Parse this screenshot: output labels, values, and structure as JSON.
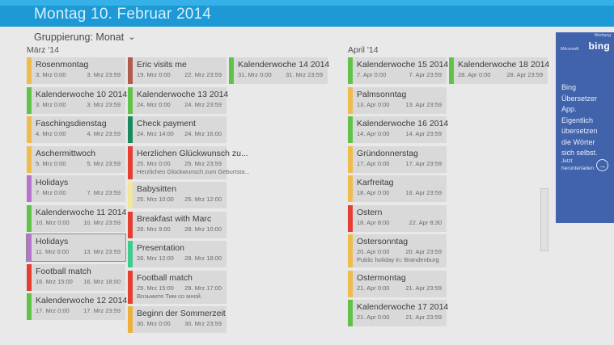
{
  "titlebar": {
    "title": "Montag 10. Februar 2014"
  },
  "toolbar": {
    "grouping_label": "Gruppierung: Monat",
    "chevron": "⌄"
  },
  "colors": {
    "amber": "#efbb4d",
    "gold": "#edb03c",
    "paleyellow": "#f2e79c",
    "green": "#60c246",
    "jade": "#168a5e",
    "mint": "#3ecb90",
    "red": "#e63e30",
    "brick": "#b05a50",
    "purple": "#b475cb"
  },
  "groups": [
    {
      "label": "März '14",
      "columns": [
        [
          {
            "title": "Rosenmontag",
            "start": "3. Mrz 0:00",
            "end": "3. Mrz 23:59",
            "color": "amber"
          },
          {
            "title": "Kalenderwoche 10 2014",
            "start": "3. Mrz 0:00",
            "end": "3. Mrz 23:59",
            "color": "green"
          },
          {
            "title": "Faschingsdienstag",
            "start": "4. Mrz 0:00",
            "end": "4. Mrz 23:59",
            "color": "amber"
          },
          {
            "title": "Aschermittwoch",
            "start": "5. Mrz 0:00",
            "end": "5. Mrz 23:59",
            "color": "amber"
          },
          {
            "title": "Holidays",
            "start": "7. Mrz 0:00",
            "end": "7. Mrz 23:59",
            "color": "purple"
          },
          {
            "title": "Kalenderwoche 11 2014",
            "start": "10. Mrz 0:00",
            "end": "10. Mrz 23:59",
            "color": "green"
          },
          {
            "title": "Holidays",
            "start": "11. Mrz 0:00",
            "end": "13. Mrz 23:59",
            "color": "purple",
            "selected": true
          },
          {
            "title": "Football match",
            "start": "16. Mrz 15:00",
            "end": "16. Mrz 18:00",
            "color": "red"
          },
          {
            "title": "Kalenderwoche 12 2014",
            "start": "17. Mrz 0:00",
            "end": "17. Mrz 23:59",
            "color": "green"
          }
        ],
        [
          {
            "title": "Eric visits me",
            "start": "19. Mrz 0:00",
            "end": "22. Mrz 23:59",
            "color": "brick"
          },
          {
            "title": "Kalenderwoche 13 2014",
            "start": "24. Mrz 0:00",
            "end": "24. Mrz 23:59",
            "color": "green"
          },
          {
            "title": "Check payment",
            "start": "24. Mrz 14:00",
            "end": "24. Mrz 16:00",
            "color": "jade"
          },
          {
            "title": "Herzlichen Glückwunsch zu...",
            "start": "25. Mrz 0:00",
            "end": "25. Mrz 23:59",
            "note": "Herzlichen Glückwunsch zum Geburtsta...",
            "color": "red"
          },
          {
            "title": "Babysitten",
            "start": "25. Mrz 10:00",
            "end": "25. Mrz 12:00",
            "color": "paleyellow"
          },
          {
            "title": "Breakfast with Marc",
            "start": "28. Mrz 9:00",
            "end": "28. Mrz 10:00",
            "color": "red"
          },
          {
            "title": "Presentation",
            "start": "28. Mrz 12:00",
            "end": "28. Mrz 18:00",
            "color": "mint"
          },
          {
            "title": "Football match",
            "start": "29. Mrz 15:00",
            "end": "29. Mrz 17:00",
            "note": "Возьмите Тим со мной.",
            "color": "red"
          },
          {
            "title": "Beginn der Sommerzeit",
            "start": "30. Mrz 0:00",
            "end": "30. Mrz 23:59",
            "color": "gold"
          }
        ],
        [
          {
            "title": "Kalenderwoche 14 2014",
            "start": "31. Mrz 0:00",
            "end": "31. Mrz 23:59",
            "color": "green"
          }
        ]
      ]
    },
    {
      "label": "April '14",
      "columns": [
        [
          {
            "title": "Kalenderwoche 15 2014",
            "start": "7. Apr 0:00",
            "end": "7. Apr 23:59",
            "color": "green"
          },
          {
            "title": "Palmsonntag",
            "start": "13. Apr 0:00",
            "end": "13. Apr 23:59",
            "color": "amber"
          },
          {
            "title": "Kalenderwoche 16 2014",
            "start": "14. Apr 0:00",
            "end": "14. Apr 23:59",
            "color": "green"
          },
          {
            "title": "Gründonnerstag",
            "start": "17. Apr 0:00",
            "end": "17. Apr 23:59",
            "color": "amber"
          },
          {
            "title": "Karfreitag",
            "start": "18. Apr 0:00",
            "end": "18. Apr 23:59",
            "color": "amber"
          },
          {
            "title": "Ostern",
            "start": "18. Apr 8:00",
            "end": "22. Apr 8:30",
            "color": "red"
          },
          {
            "title": "Ostersonntag",
            "start": "20. Apr 0:00",
            "end": "20. Apr 23:59",
            "note": "Public holiday in: Brandenburg",
            "color": "amber"
          },
          {
            "title": "Ostermontag",
            "start": "21. Apr 0:00",
            "end": "21. Apr 23:59",
            "color": "amber"
          },
          {
            "title": "Kalenderwoche 17 2014",
            "start": "21. Apr 0:00",
            "end": "21. Apr 23:59",
            "color": "green"
          }
        ],
        [
          {
            "title": "Kalenderwoche 18 2014",
            "start": "28. Apr 0:00",
            "end": "28. Apr 23:59",
            "color": "green"
          }
        ]
      ]
    }
  ],
  "ad": {
    "werbung": "Werbung",
    "microsoft": "Microsoft",
    "bing": "bing",
    "body": "Bing Übersetzer App. Eigentlich übersetzen die Wörter sich selbst.",
    "cta": "Jetzt herunterladen",
    "arrow": "→"
  }
}
